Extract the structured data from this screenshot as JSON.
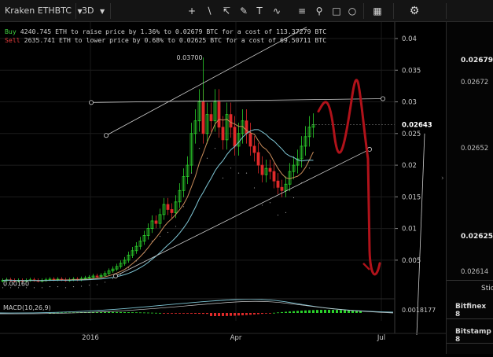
{
  "toolbar": {
    "symbol": "Kraken ETHBTC",
    "interval": "3D",
    "tools": [
      "crosshair-icon",
      "trendline-icon",
      "fib-icon",
      "brush-icon",
      "text-icon",
      "pattern-icon",
      "measure-icon",
      "zoom-icon",
      "circle-icon",
      "snapshot-icon",
      "settings-icon"
    ]
  },
  "info": {
    "buy_label": "Buy",
    "buy_text": "4240.745 ETH to raise price by 1.36% to 0.02679 BTC for a cost of 113.37279 BTC",
    "sell_label": "Sell",
    "sell_text": "2635.741 ETH to lower price by 0.68% to 0.02625 BTC for a cost of 69.50711 BTC"
  },
  "chart": {
    "high_label": "0.03700",
    "low_label": "0.00160",
    "current_price": "0.02643",
    "price_ticks": [
      "0.04",
      "0.035",
      "0.03",
      "0.025",
      "0.02",
      "0.015",
      "0.01",
      "0.005"
    ],
    "time_ticks": [
      "2016",
      "Apr",
      "Jul"
    ],
    "macd_label": "MACD(10,26,9)",
    "macd_value": "0.0018177"
  },
  "orderbook": {
    "prices": [
      "0.02679",
      "0.02672",
      "0.02652",
      "0.02625",
      "0.02614"
    ],
    "header": "Stic",
    "exchanges": [
      "Bitfinex 8",
      "Bitstamp 8"
    ]
  },
  "colors": {
    "up": "#2bd12b",
    "down": "#e02a2a",
    "ma_fast": "#c98c5a",
    "ma_slow": "#7fc7d6",
    "drawing": "#b0121a",
    "trendline": "#cfcfcf"
  }
}
